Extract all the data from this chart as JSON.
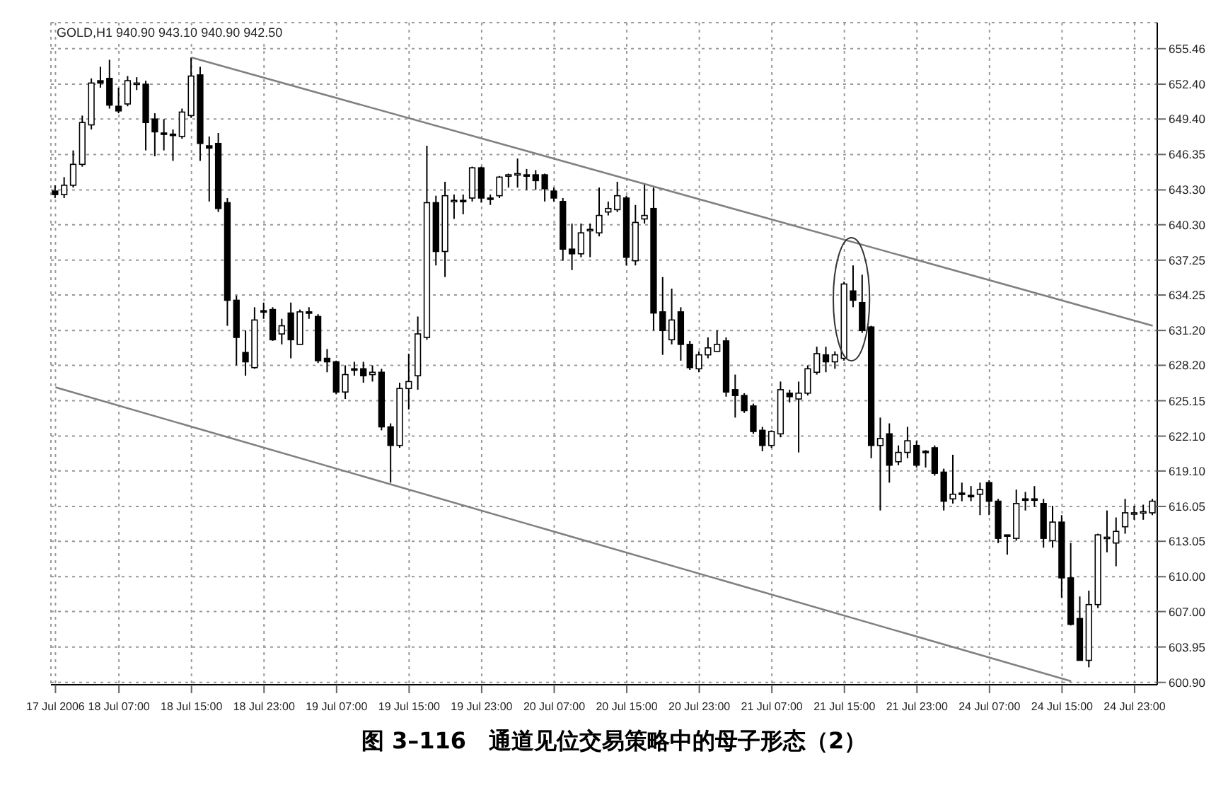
{
  "chart_data": {
    "type": "candlestick",
    "title": "图 3–116　通道见位交易策略中的母子形态（2）",
    "annotations": [
      "GOLD,H1 940.90 943.10 940.90 942.50"
    ],
    "categories": [
      "17 Jul 2006",
      null,
      null,
      null,
      null,
      null,
      null,
      "18 Jul 07:00",
      null,
      null,
      null,
      null,
      null,
      null,
      null,
      "18 Jul 15:00",
      null,
      null,
      null,
      null,
      null,
      null,
      null,
      "18 Jul 23:00",
      null,
      null,
      null,
      null,
      null,
      null,
      null,
      "19 Jul 07:00",
      null,
      null,
      null,
      null,
      null,
      null,
      null,
      "19 Jul 15:00",
      null,
      null,
      null,
      null,
      null,
      null,
      null,
      "19 Jul 23:00",
      null,
      null,
      null,
      null,
      null,
      null,
      null,
      "20 Jul 07:00",
      null,
      null,
      null,
      null,
      null,
      null,
      null,
      "20 Jul 15:00",
      null,
      null,
      null,
      null,
      null,
      null,
      null,
      "20 Jul 23:00",
      null,
      null,
      null,
      null,
      null,
      null,
      null,
      "21 Jul 07:00",
      null,
      null,
      null,
      null,
      null,
      null,
      null,
      "21 Jul 15:00",
      null,
      null,
      null,
      null,
      null,
      null,
      null,
      "21 Jul 23:00",
      null,
      null,
      null,
      null,
      null,
      null,
      null,
      "24 Jul 07:00",
      null,
      null,
      null,
      null,
      null,
      null,
      null,
      "24 Jul 15:00",
      null,
      null,
      null,
      null,
      null,
      null,
      null,
      "24 Jul 23:00",
      null,
      null
    ],
    "ohlc": [
      [
        643.2,
        643.7,
        642.6,
        642.9
      ],
      [
        642.9,
        644.4,
        642.6,
        643.7
      ],
      [
        643.7,
        646.7,
        643.5,
        645.5
      ],
      [
        645.5,
        649.7,
        645.3,
        649.1
      ],
      [
        648.9,
        652.9,
        648.5,
        652.5
      ],
      [
        652.7,
        653.9,
        652.1,
        652.5
      ],
      [
        652.9,
        654.5,
        650.3,
        650.6
      ],
      [
        650.5,
        652.1,
        649.9,
        650.1
      ],
      [
        650.7,
        653.1,
        650.5,
        652.7
      ],
      [
        652.4,
        653.0,
        651.9,
        652.5
      ],
      [
        652.4,
        652.7,
        646.7,
        649.1
      ],
      [
        649.4,
        649.9,
        646.2,
        648.3
      ],
      [
        648.2,
        649.4,
        646.7,
        648.1
      ],
      [
        648.1,
        648.5,
        645.8,
        648.0
      ],
      [
        647.9,
        650.3,
        647.7,
        650.0
      ],
      [
        649.7,
        654.7,
        649.5,
        653.1
      ],
      [
        653.2,
        653.9,
        645.8,
        647.3
      ],
      [
        647.1,
        647.9,
        642.3,
        646.9
      ],
      [
        647.3,
        648.2,
        641.4,
        641.7
      ],
      [
        642.2,
        642.6,
        631.6,
        633.8
      ],
      [
        633.8,
        634.2,
        628.2,
        630.6
      ],
      [
        629.3,
        631.2,
        627.3,
        628.5
      ],
      [
        628.0,
        633.2,
        627.9,
        632.1
      ],
      [
        632.9,
        633.6,
        632.2,
        632.8
      ],
      [
        633.0,
        633.2,
        630.3,
        630.4
      ],
      [
        630.9,
        632.2,
        630.0,
        631.6
      ],
      [
        632.7,
        633.6,
        628.8,
        630.4
      ],
      [
        630.0,
        633.0,
        630.0,
        632.8
      ],
      [
        632.8,
        633.2,
        632.2,
        632.7
      ],
      [
        632.4,
        632.6,
        628.4,
        628.6
      ],
      [
        628.8,
        629.6,
        627.6,
        628.5
      ],
      [
        628.5,
        628.6,
        625.7,
        625.9
      ],
      [
        625.9,
        628.2,
        625.3,
        627.4
      ],
      [
        627.9,
        628.5,
        627.3,
        627.8
      ],
      [
        627.9,
        628.5,
        626.7,
        627.3
      ],
      [
        627.4,
        628.2,
        626.8,
        627.6
      ],
      [
        627.6,
        627.9,
        622.6,
        622.9
      ],
      [
        622.9,
        623.2,
        618.1,
        621.3
      ],
      [
        621.3,
        626.7,
        621.1,
        626.2
      ],
      [
        626.2,
        629.2,
        624.4,
        626.8
      ],
      [
        627.3,
        632.4,
        626.1,
        630.9
      ],
      [
        630.6,
        647.1,
        630.4,
        642.2
      ],
      [
        642.2,
        642.8,
        636.8,
        638.0
      ],
      [
        638.0,
        644.0,
        635.8,
        642.8
      ],
      [
        642.3,
        642.9,
        640.8,
        642.4
      ],
      [
        642.4,
        642.9,
        641.2,
        642.3
      ],
      [
        642.6,
        645.3,
        642.3,
        645.2
      ],
      [
        645.2,
        645.3,
        642.2,
        642.6
      ],
      [
        642.6,
        642.9,
        642.0,
        642.5
      ],
      [
        642.8,
        644.5,
        642.6,
        644.4
      ],
      [
        644.6,
        644.7,
        643.5,
        644.6
      ],
      [
        644.6,
        646.0,
        643.5,
        644.7
      ],
      [
        644.6,
        645.1,
        643.3,
        644.5
      ],
      [
        644.6,
        645.0,
        643.3,
        644.1
      ],
      [
        644.6,
        644.7,
        642.3,
        643.4
      ],
      [
        643.2,
        643.5,
        642.3,
        642.6
      ],
      [
        642.3,
        642.6,
        637.2,
        638.2
      ],
      [
        638.2,
        640.4,
        636.4,
        637.8
      ],
      [
        637.8,
        640.4,
        637.5,
        639.6
      ],
      [
        639.8,
        640.4,
        637.5,
        639.9
      ],
      [
        639.6,
        643.5,
        639.3,
        641.1
      ],
      [
        641.4,
        642.3,
        641.1,
        641.7
      ],
      [
        641.6,
        644.0,
        641.4,
        642.8
      ],
      [
        642.6,
        642.8,
        636.8,
        637.5
      ],
      [
        637.2,
        642.0,
        636.8,
        640.5
      ],
      [
        640.8,
        643.8,
        640.4,
        641.1
      ],
      [
        641.7,
        643.5,
        631.2,
        632.7
      ],
      [
        632.8,
        635.8,
        629.1,
        631.2
      ],
      [
        630.4,
        634.8,
        630.0,
        632.1
      ],
      [
        632.8,
        633.2,
        628.6,
        630.0
      ],
      [
        630.0,
        630.3,
        627.8,
        628.0
      ],
      [
        627.9,
        629.4,
        627.6,
        629.1
      ],
      [
        629.1,
        630.6,
        628.8,
        629.7
      ],
      [
        629.4,
        631.2,
        629.4,
        630.0
      ],
      [
        630.3,
        630.6,
        625.5,
        625.9
      ],
      [
        626.1,
        627.4,
        623.7,
        625.6
      ],
      [
        625.6,
        625.8,
        624.1,
        624.3
      ],
      [
        624.7,
        624.9,
        622.3,
        622.5
      ],
      [
        622.6,
        622.9,
        620.8,
        621.3
      ],
      [
        621.3,
        622.6,
        621.1,
        622.5
      ],
      [
        622.3,
        626.8,
        622.0,
        626.1
      ],
      [
        625.8,
        626.1,
        625.0,
        625.5
      ],
      [
        625.3,
        626.8,
        620.7,
        625.8
      ],
      [
        625.8,
        628.2,
        625.6,
        627.9
      ],
      [
        627.6,
        629.8,
        627.4,
        629.2
      ],
      [
        629.1,
        629.8,
        627.6,
        628.5
      ],
      [
        628.5,
        629.4,
        627.9,
        629.1
      ],
      [
        628.8,
        635.4,
        628.6,
        635.2
      ],
      [
        634.6,
        636.8,
        633.2,
        633.8
      ],
      [
        633.6,
        636.0,
        631.0,
        631.2
      ],
      [
        631.5,
        631.6,
        620.2,
        621.3
      ],
      [
        621.3,
        623.7,
        615.7,
        621.9
      ],
      [
        622.3,
        623.2,
        618.1,
        619.6
      ],
      [
        619.9,
        621.3,
        619.6,
        620.7
      ],
      [
        620.7,
        622.9,
        620.2,
        621.7
      ],
      [
        621.3,
        621.7,
        619.4,
        619.6
      ],
      [
        620.8,
        620.9,
        619.4,
        620.7
      ],
      [
        621.1,
        621.3,
        618.7,
        618.9
      ],
      [
        619.0,
        619.3,
        615.7,
        616.5
      ],
      [
        616.7,
        620.5,
        616.3,
        617.1
      ],
      [
        617.2,
        618.1,
        616.5,
        617.1
      ],
      [
        617.0,
        617.8,
        616.5,
        616.9
      ],
      [
        617.1,
        618.1,
        615.3,
        617.5
      ],
      [
        618.1,
        618.3,
        615.3,
        616.5
      ],
      [
        616.5,
        616.7,
        612.9,
        613.3
      ],
      [
        613.6,
        613.6,
        611.9,
        613.5
      ],
      [
        613.3,
        617.5,
        613.1,
        616.3
      ],
      [
        616.7,
        617.3,
        615.7,
        616.6
      ],
      [
        616.7,
        617.8,
        616.0,
        616.6
      ],
      [
        616.3,
        616.7,
        612.5,
        613.3
      ],
      [
        613.1,
        616.1,
        612.5,
        614.7
      ],
      [
        614.7,
        615.3,
        608.2,
        609.9
      ],
      [
        609.9,
        612.9,
        605.8,
        605.9
      ],
      [
        606.4,
        608.3,
        602.8,
        602.8
      ],
      [
        602.8,
        608.8,
        602.2,
        607.6
      ],
      [
        607.6,
        613.7,
        607.3,
        613.6
      ],
      [
        613.3,
        615.7,
        612.1,
        613.4
      ],
      [
        612.9,
        615.1,
        610.9,
        613.9
      ],
      [
        614.3,
        616.7,
        613.7,
        615.5
      ],
      [
        615.5,
        616.1,
        614.9,
        615.5
      ],
      [
        615.5,
        616.2,
        614.9,
        615.6
      ],
      [
        615.5,
        616.7,
        615.3,
        616.5
      ]
    ],
    "series": [
      {
        "type": "line",
        "color": "#808080",
        "values": [
          null,
          null,
          null,
          null,
          null,
          null,
          null,
          null,
          null,
          null,
          null,
          null,
          null,
          null,
          null,
          654.7,
          null,
          null,
          null,
          null,
          null,
          null,
          null,
          null,
          null,
          null,
          null,
          null,
          null,
          null,
          null,
          null,
          null,
          null,
          null,
          null,
          null,
          null,
          null,
          null,
          null,
          null,
          null,
          null,
          null,
          null,
          null,
          null,
          null,
          null,
          null,
          null,
          null,
          null,
          null,
          null,
          null,
          null,
          null,
          null,
          null,
          null,
          null,
          null,
          null,
          null,
          null,
          null,
          null,
          null,
          null,
          null,
          null,
          null,
          null,
          null,
          null,
          null,
          null,
          null,
          null,
          null,
          null,
          null,
          null,
          null,
          null,
          null,
          null,
          null,
          null,
          null,
          null,
          null,
          null,
          null,
          null,
          null,
          null,
          null,
          null,
          null,
          null,
          null,
          null,
          null,
          null,
          null,
          null,
          null,
          null,
          null,
          null,
          null,
          null,
          null,
          null,
          null,
          null,
          null,
          null,
          631.6
        ]
      },
      {
        "type": "line",
        "color": "#808080",
        "values": [
          626.3,
          null,
          null,
          null,
          null,
          null,
          null,
          null,
          null,
          null,
          null,
          null,
          null,
          null,
          null,
          null,
          null,
          null,
          null,
          null,
          null,
          null,
          null,
          null,
          null,
          null,
          null,
          null,
          null,
          null,
          null,
          null,
          null,
          null,
          null,
          null,
          null,
          null,
          null,
          null,
          null,
          null,
          null,
          null,
          null,
          null,
          null,
          null,
          null,
          null,
          null,
          null,
          null,
          null,
          null,
          null,
          null,
          null,
          null,
          null,
          null,
          null,
          null,
          null,
          null,
          null,
          null,
          null,
          null,
          null,
          null,
          null,
          null,
          null,
          null,
          null,
          null,
          null,
          null,
          null,
          null,
          null,
          null,
          null,
          null,
          null,
          null,
          null,
          null,
          null,
          null,
          null,
          null,
          null,
          null,
          null,
          null,
          null,
          null,
          null,
          null,
          null,
          null,
          null,
          null,
          null,
          null,
          null,
          null,
          null,
          null,
          null,
          601.0,
          null,
          null,
          null,
          null,
          null,
          null,
          null,
          null,
          null
        ]
      }
    ],
    "ylim": [
      600.7,
      657.7
    ],
    "yticks": [
      655.46,
      {
        "value": 652.4,
        "label": "652.40"
      },
      {
        "value": 649.4,
        "label": "649.40"
      },
      646.35,
      {
        "value": 643.3,
        "label": "643.30"
      },
      {
        "value": 640.3,
        "label": "640.30"
      },
      637.25,
      634.25,
      {
        "value": 631.2,
        "label": "631.20"
      },
      {
        "value": 628.2,
        "label": "628.20"
      },
      625.15,
      {
        "value": 622.1,
        "label": "622.10"
      },
      {
        "value": 619.1,
        "label": "619.10"
      },
      616.05,
      613.05,
      {
        "value": 610,
        "label": "610.00"
      },
      {
        "value": 607,
        "label": "607.00"
      },
      603.95,
      {
        "value": 600.9,
        "label": "600.90"
      }
    ],
    "grid": true,
    "legend": false
  }
}
